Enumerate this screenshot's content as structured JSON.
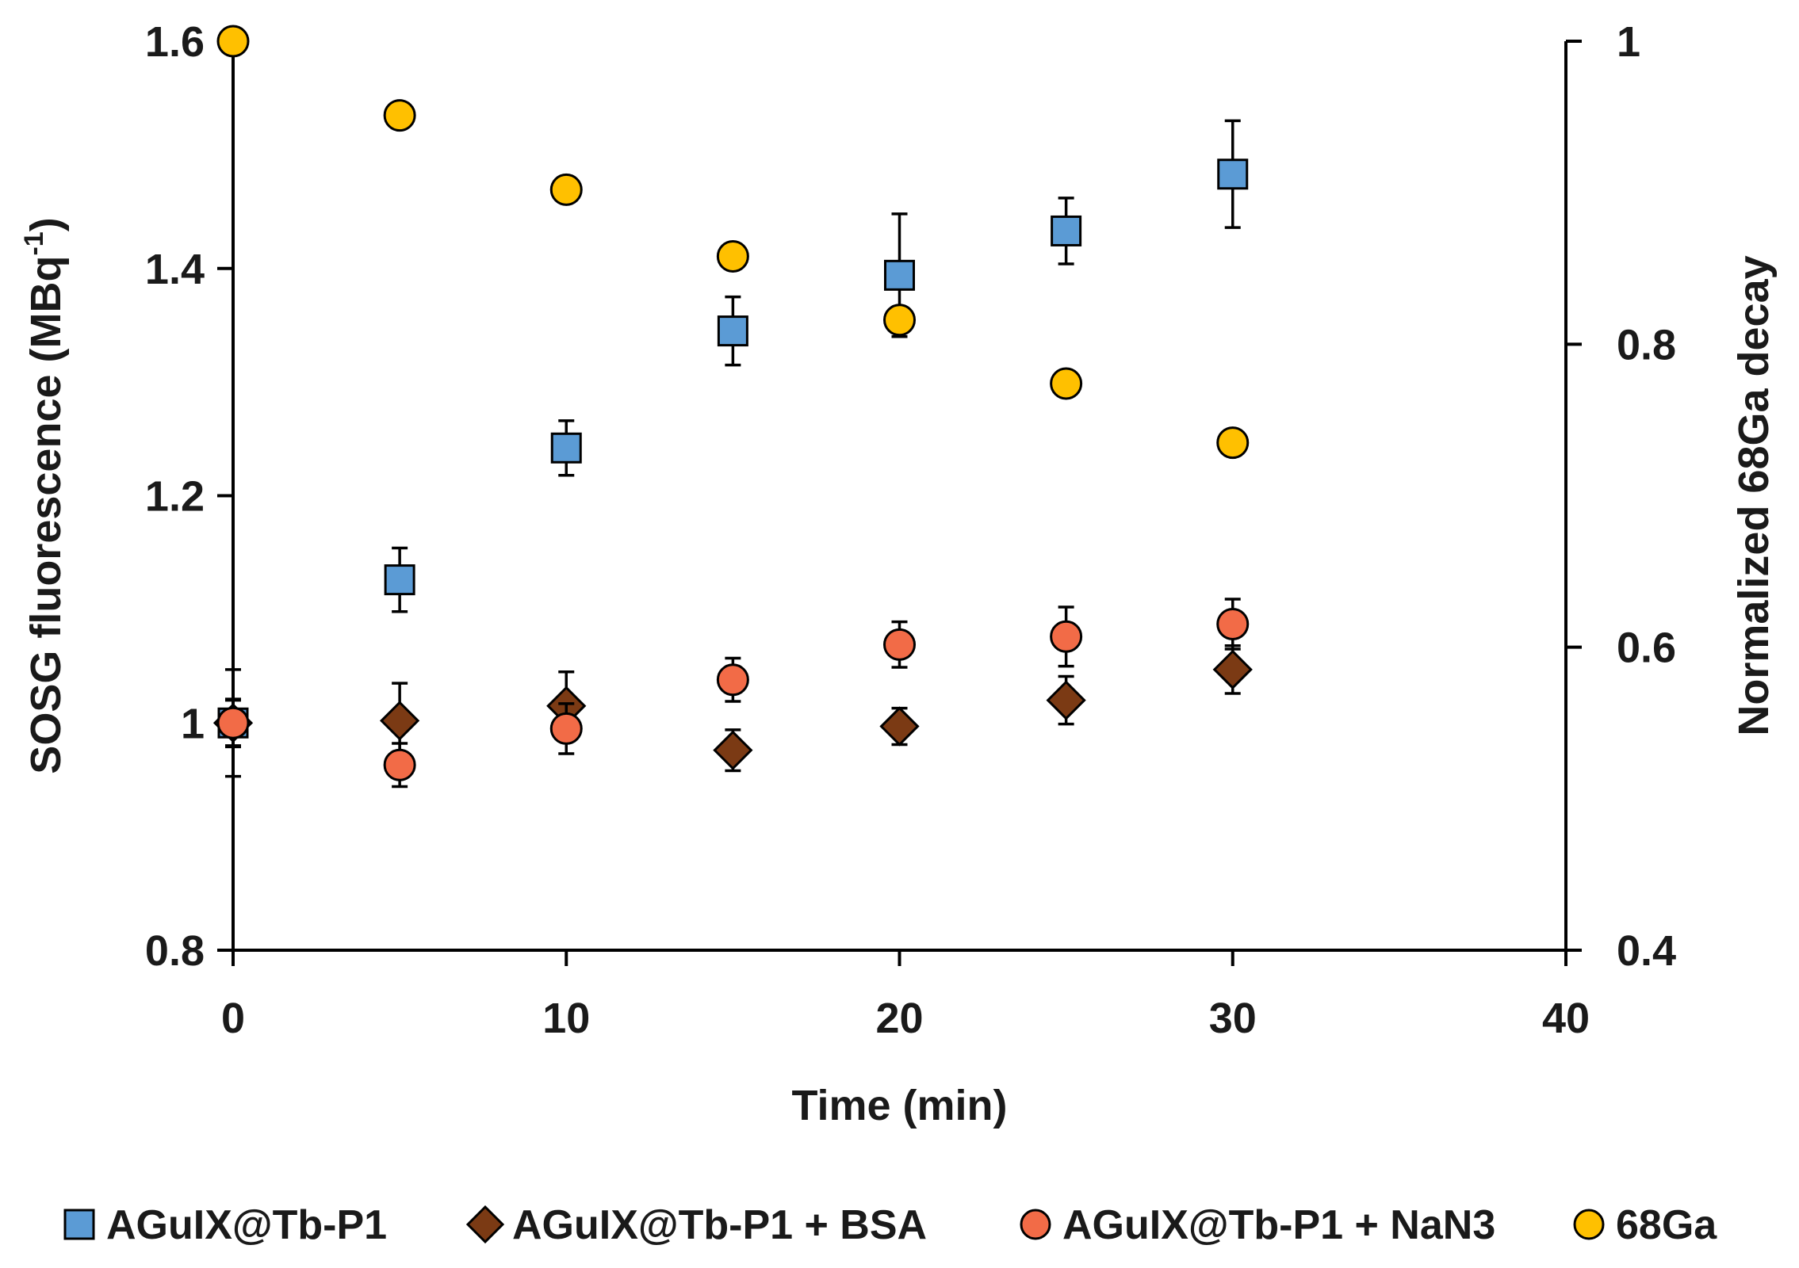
{
  "chart_data": {
    "type": "scatter",
    "title": "",
    "xlabel": "Time (min)",
    "ylabel": "SOSG fluorescence (MBq",
    "ylabel_superscript": "-1",
    "ylabel_close": ")",
    "y2label": "Normalized 68Ga decay",
    "xlim": [
      0,
      40
    ],
    "ylim": [
      0.8,
      1.6
    ],
    "y2lim": [
      0.4,
      1.0
    ],
    "x_ticks": [
      0,
      10,
      20,
      30,
      40
    ],
    "x_tick_labels": [
      "0",
      "10",
      "20",
      "30",
      "40"
    ],
    "y_ticks": [
      0.8,
      1.0,
      1.2,
      1.4,
      1.6
    ],
    "y_tick_labels": [
      "0.8",
      "1",
      "1.2",
      "1.4",
      "1.6"
    ],
    "y2_ticks": [
      0.4,
      0.6,
      0.8,
      1.0
    ],
    "y2_tick_labels": [
      "0.4",
      "0.6",
      "0.8",
      "1"
    ],
    "grid": false,
    "legend_position": "bottom",
    "series": [
      {
        "name": "AGuIX@Tb-P1",
        "marker": "square",
        "color": "#5b9bd5",
        "axis": "left",
        "x": [
          0,
          5,
          10,
          15,
          20,
          25,
          30
        ],
        "y": [
          1.0,
          1.126,
          1.242,
          1.345,
          1.394,
          1.433,
          1.483
        ],
        "err": [
          0.02,
          0.028,
          0.024,
          0.03,
          0.054,
          0.029,
          0.047
        ]
      },
      {
        "name": "AGuIX@Tb-P1 + BSA",
        "marker": "diamond",
        "color": "#7b3a14",
        "axis": "left",
        "x": [
          0,
          5,
          10,
          15,
          20,
          25,
          30
        ],
        "y": [
          1.0,
          1.002,
          1.015,
          0.976,
          0.997,
          1.02,
          1.047
        ],
        "err": [
          0.047,
          0.033,
          0.03,
          0.018,
          0.016,
          0.021,
          0.021
        ]
      },
      {
        "name": "AGuIX@Tb-P1 + NaN3",
        "marker": "circle",
        "color": "#f26b47",
        "axis": "left",
        "x": [
          0,
          5,
          10,
          15,
          20,
          25,
          30
        ],
        "y": [
          1.0,
          0.963,
          0.995,
          1.038,
          1.069,
          1.076,
          1.087
        ],
        "err": [
          0.021,
          0.019,
          0.022,
          0.019,
          0.02,
          0.026,
          0.022
        ]
      },
      {
        "name": "68Ga",
        "marker": "circle",
        "color": "#ffc000",
        "axis": "right",
        "x": [
          0,
          5,
          10,
          15,
          20,
          25,
          30
        ],
        "y": [
          1.0,
          0.951,
          0.902,
          0.858,
          0.816,
          0.774,
          0.735
        ],
        "err": [
          0,
          0,
          0,
          0,
          0,
          0,
          0
        ]
      }
    ]
  }
}
